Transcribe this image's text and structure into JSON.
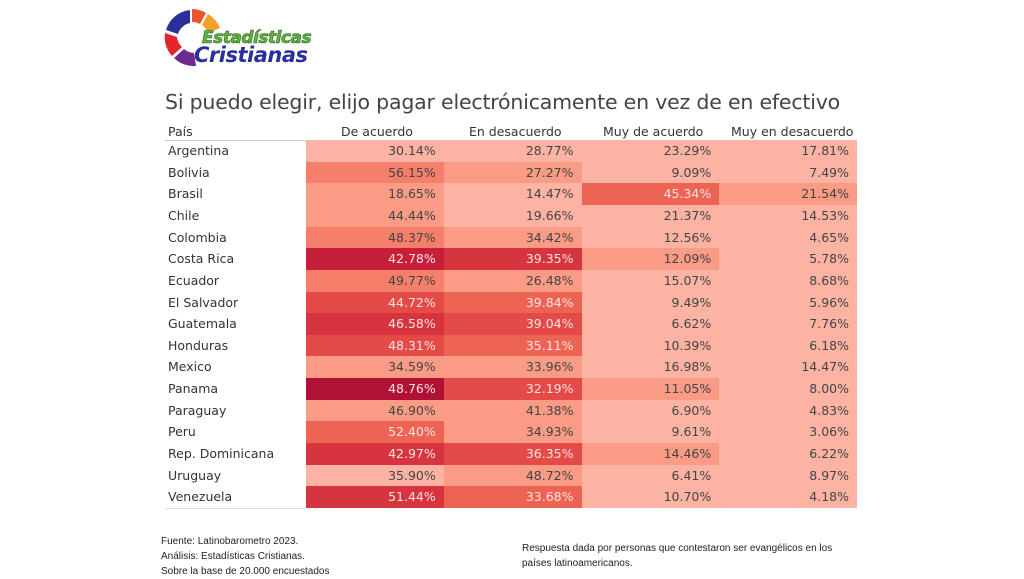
{
  "logo": {
    "line1": "Estadísticas",
    "line2": "Cristianas"
  },
  "chart_data": {
    "type": "heatmap",
    "title": "Si puedo elegir, elijo pagar electrónicamente en vez de en efectivo",
    "row_header": "País",
    "columns": [
      "De acuerdo",
      "En desacuerdo",
      "Muy de acuerdo",
      "Muy en desacuerdo"
    ],
    "rows": [
      {
        "country": "Argentina",
        "values": [
          "30.14%",
          "28.77%",
          "23.29%",
          "17.81%"
        ],
        "shade": [
          1,
          1,
          1,
          1
        ]
      },
      {
        "country": "Bolivia",
        "values": [
          "56.15%",
          "27.27%",
          "9.09%",
          "7.49%"
        ],
        "shade": [
          3,
          2,
          1,
          1
        ]
      },
      {
        "country": "Brasil",
        "values": [
          "18.65%",
          "14.47%",
          "45.34%",
          "21.54%"
        ],
        "shade": [
          2,
          1,
          4,
          2
        ]
      },
      {
        "country": "Chile",
        "values": [
          "44.44%",
          "19.66%",
          "21.37%",
          "14.53%"
        ],
        "shade": [
          2,
          1,
          1,
          1
        ]
      },
      {
        "country": "Colombia",
        "values": [
          "48.37%",
          "34.42%",
          "12.56%",
          "4.65%"
        ],
        "shade": [
          3,
          2,
          1,
          1
        ]
      },
      {
        "country": "Costa Rica",
        "values": [
          "42.78%",
          "39.35%",
          "12.09%",
          "5.78%"
        ],
        "shade": [
          7,
          6,
          2,
          1
        ]
      },
      {
        "country": "Ecuador",
        "values": [
          "49.77%",
          "26.48%",
          "15.07%",
          "8.68%"
        ],
        "shade": [
          3,
          2,
          1,
          1
        ]
      },
      {
        "country": "El Salvador",
        "values": [
          "44.72%",
          "39.84%",
          "9.49%",
          "5.96%"
        ],
        "shade": [
          5,
          4,
          1,
          1
        ]
      },
      {
        "country": "Guatemala",
        "values": [
          "46.58%",
          "39.04%",
          "6.62%",
          "7.76%"
        ],
        "shade": [
          6,
          5,
          1,
          1
        ]
      },
      {
        "country": "Honduras",
        "values": [
          "48.31%",
          "35.11%",
          "10.39%",
          "6.18%"
        ],
        "shade": [
          5,
          4,
          1,
          1
        ]
      },
      {
        "country": "Mexico",
        "values": [
          "34.59%",
          "33.96%",
          "16.98%",
          "14.47%"
        ],
        "shade": [
          2,
          2,
          1,
          1
        ]
      },
      {
        "country": "Panama",
        "values": [
          "48.76%",
          "32.19%",
          "11.05%",
          "8.00%"
        ],
        "shade": [
          8,
          5,
          2,
          1
        ]
      },
      {
        "country": "Paraguay",
        "values": [
          "46.90%",
          "41.38%",
          "6.90%",
          "4.83%"
        ],
        "shade": [
          2,
          2,
          1,
          1
        ]
      },
      {
        "country": "Peru",
        "values": [
          "52.40%",
          "34.93%",
          "9.61%",
          "3.06%"
        ],
        "shade": [
          4,
          2,
          1,
          1
        ]
      },
      {
        "country": "Rep. Dominicana",
        "values": [
          "42.97%",
          "36.35%",
          "14.46%",
          "6.22%"
        ],
        "shade": [
          6,
          5,
          2,
          1
        ]
      },
      {
        "country": "Uruguay",
        "values": [
          "35.90%",
          "48.72%",
          "6.41%",
          "8.97%"
        ],
        "shade": [
          1,
          2,
          1,
          1
        ]
      },
      {
        "country": "Venezuela",
        "values": [
          "51.44%",
          "33.68%",
          "10.70%",
          "4.18%"
        ],
        "shade": [
          6,
          4,
          1,
          1
        ]
      }
    ],
    "palette": [
      "#fdd0c4",
      "#fcb3a4",
      "#fa9b86",
      "#f57f6a",
      "#ee6454",
      "#e34a48",
      "#d6353f",
      "#c71f3a",
      "#b01236"
    ]
  },
  "footer": {
    "source": "Fuente: Latinobarometro 2023.",
    "analysis": "Análisis: Estadísticas Cristianas.",
    "base": "Sobre la base de 20.000 encuestados",
    "note": "Respuesta dada por personas que contestaron ser evangélicos en los países latinoamericanos."
  }
}
